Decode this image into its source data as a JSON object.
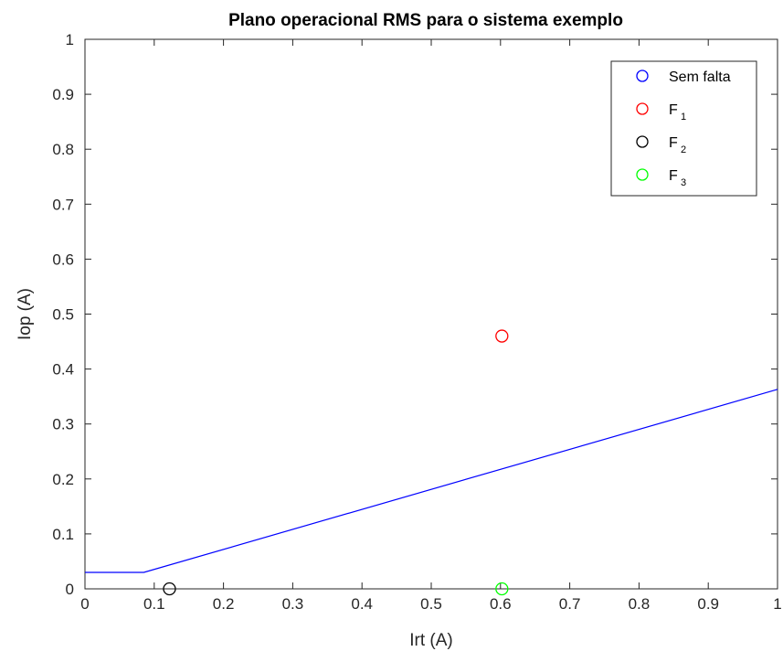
{
  "chart_data": {
    "type": "scatter",
    "title": "Plano operacional RMS para o sistema exemplo",
    "xlabel": "Irt (A)",
    "ylabel": "Iop (A)",
    "xlim": [
      0,
      1
    ],
    "ylim": [
      0,
      1
    ],
    "xticks": [
      "0",
      "0.1",
      "0.2",
      "0.3",
      "0.4",
      "0.5",
      "0.6",
      "0.7",
      "0.8",
      "0.9",
      "1"
    ],
    "yticks": [
      "0",
      "0.1",
      "0.2",
      "0.3",
      "0.4",
      "0.5",
      "0.6",
      "0.7",
      "0.8",
      "0.9",
      "1"
    ],
    "grid": false,
    "legend_position": "top-right",
    "characteristic": {
      "color": "#0000ff",
      "x": [
        0,
        0.085,
        1
      ],
      "y": [
        0.03,
        0.03,
        0.363
      ]
    },
    "series": [
      {
        "name": "Sem falta",
        "sub": "",
        "color": "#0000ff",
        "points": []
      },
      {
        "name": "F",
        "sub": "1",
        "color": "#ff0000",
        "points": [
          [
            0.602,
            0.46
          ]
        ]
      },
      {
        "name": "F",
        "sub": "2",
        "color": "#000000",
        "points": [
          [
            0.122,
            0.0
          ]
        ]
      },
      {
        "name": "F",
        "sub": "3",
        "color": "#00ff00",
        "points": [
          [
            0.602,
            0.0
          ]
        ]
      }
    ]
  }
}
